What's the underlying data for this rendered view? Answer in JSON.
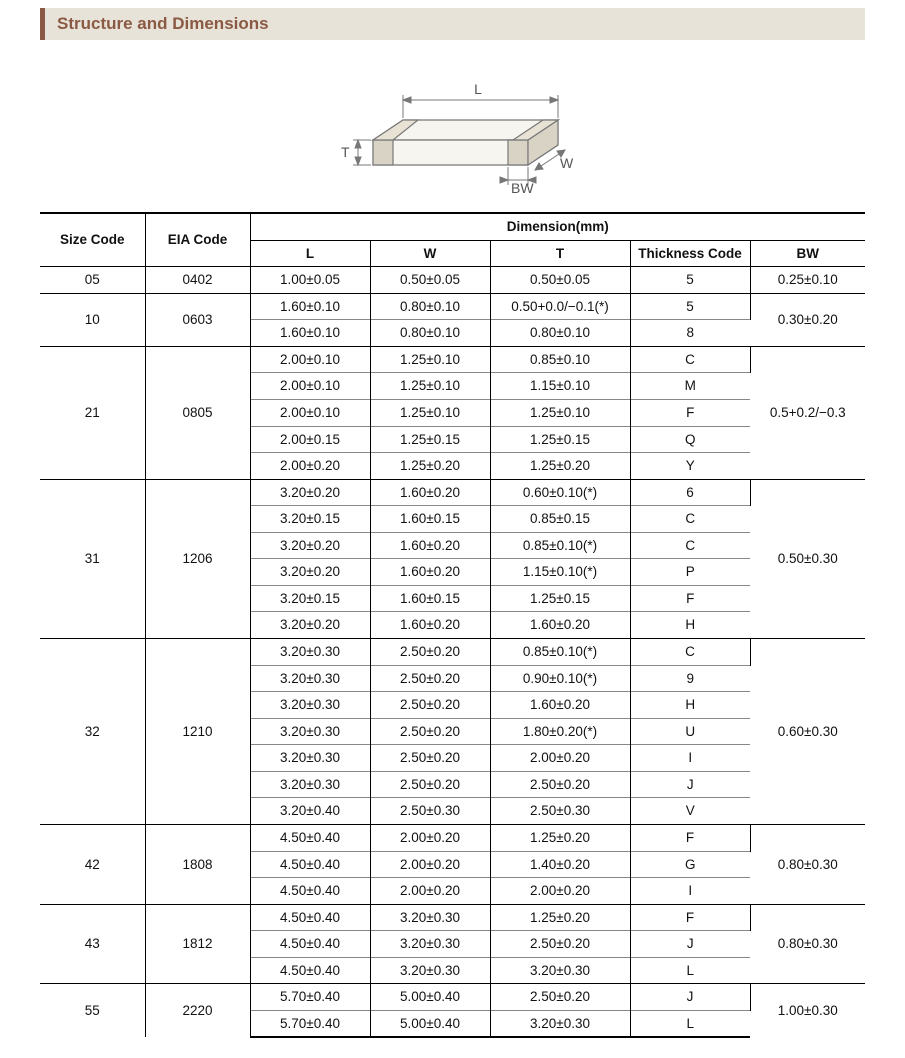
{
  "title": "Structure and Dimensions",
  "diagram": {
    "labels": {
      "L": "L",
      "W": "W",
      "T": "T",
      "BW": "BW"
    },
    "stroke": "#777777",
    "fill": "#f7f5f0",
    "text_color": "#555555",
    "fontsize": 14
  },
  "table": {
    "header_top": {
      "size": "Size Code",
      "eia": "EIA Code",
      "dim": "Dimension(mm)"
    },
    "header_sub": [
      "L",
      "W",
      "T",
      "Thickness  Code",
      "BW"
    ],
    "groups": [
      {
        "size": "05",
        "eia": "0402",
        "bw": "0.25±0.10",
        "rows": [
          {
            "L": "1.00±0.05",
            "W": "0.50±0.05",
            "T": "0.50±0.05",
            "tc": "5"
          }
        ]
      },
      {
        "size": "10",
        "eia": "0603",
        "bw": "0.30±0.20",
        "rows": [
          {
            "L": "1.60±0.10",
            "W": "0.80±0.10",
            "T": "0.50+0.0/−0.1(*)",
            "tc": "5"
          },
          {
            "L": "1.60±0.10",
            "W": "0.80±0.10",
            "T": "0.80±0.10",
            "tc": "8"
          }
        ]
      },
      {
        "size": "21",
        "eia": "0805",
        "bw": "0.5+0.2/−0.3",
        "rows": [
          {
            "L": "2.00±0.10",
            "W": "1.25±0.10",
            "T": "0.85±0.10",
            "tc": "C"
          },
          {
            "L": "2.00±0.10",
            "W": "1.25±0.10",
            "T": "1.15±0.10",
            "tc": "M"
          },
          {
            "L": "2.00±0.10",
            "W": "1.25±0.10",
            "T": "1.25±0.10",
            "tc": "F"
          },
          {
            "L": "2.00±0.15",
            "W": "1.25±0.15",
            "T": "1.25±0.15",
            "tc": "Q"
          },
          {
            "L": "2.00±0.20",
            "W": "1.25±0.20",
            "T": "1.25±0.20",
            "tc": "Y"
          }
        ]
      },
      {
        "size": "31",
        "eia": "1206",
        "bw": "0.50±0.30",
        "rows": [
          {
            "L": "3.20±0.20",
            "W": "1.60±0.20",
            "T": "0.60±0.10(*)",
            "tc": "6"
          },
          {
            "L": "3.20±0.15",
            "W": "1.60±0.15",
            "T": "0.85±0.15",
            "tc": "C"
          },
          {
            "L": "3.20±0.20",
            "W": "1.60±0.20",
            "T": "0.85±0.10(*)",
            "tc": "C"
          },
          {
            "L": "3.20±0.20",
            "W": "1.60±0.20",
            "T": "1.15±0.10(*)",
            "tc": "P"
          },
          {
            "L": "3.20±0.15",
            "W": "1.60±0.15",
            "T": "1.25±0.15",
            "tc": "F"
          },
          {
            "L": "3.20±0.20",
            "W": "1.60±0.20",
            "T": "1.60±0.20",
            "tc": "H"
          }
        ]
      },
      {
        "size": "32",
        "eia": "1210",
        "bw": "0.60±0.30",
        "rows": [
          {
            "L": "3.20±0.30",
            "W": "2.50±0.20",
            "T": "0.85±0.10(*)",
            "tc": "C"
          },
          {
            "L": "3.20±0.30",
            "W": "2.50±0.20",
            "T": "0.90±0.10(*)",
            "tc": "9"
          },
          {
            "L": "3.20±0.30",
            "W": "2.50±0.20",
            "T": "1.60±0.20",
            "tc": "H"
          },
          {
            "L": "3.20±0.30",
            "W": "2.50±0.20",
            "T": "1.80±0.20(*)",
            "tc": "U"
          },
          {
            "L": "3.20±0.30",
            "W": "2.50±0.20",
            "T": "2.00±0.20",
            "tc": "I"
          },
          {
            "L": "3.20±0.30",
            "W": "2.50±0.20",
            "T": "2.50±0.20",
            "tc": "J"
          },
          {
            "L": "3.20±0.40",
            "W": "2.50±0.30",
            "T": "2.50±0.30",
            "tc": "V"
          }
        ]
      },
      {
        "size": "42",
        "eia": "1808",
        "bw": "0.80±0.30",
        "rows": [
          {
            "L": "4.50±0.40",
            "W": "2.00±0.20",
            "T": "1.25±0.20",
            "tc": "F"
          },
          {
            "L": "4.50±0.40",
            "W": "2.00±0.20",
            "T": "1.40±0.20",
            "tc": "G"
          },
          {
            "L": "4.50±0.40",
            "W": "2.00±0.20",
            "T": "2.00±0.20",
            "tc": "I"
          }
        ]
      },
      {
        "size": "43",
        "eia": "1812",
        "bw": "0.80±0.30",
        "rows": [
          {
            "L": "4.50±0.40",
            "W": "3.20±0.30",
            "T": "1.25±0.20",
            "tc": "F"
          },
          {
            "L": "4.50±0.40",
            "W": "3.20±0.30",
            "T": "2.50±0.20",
            "tc": "J"
          },
          {
            "L": "4.50±0.40",
            "W": "3.20±0.30",
            "T": "3.20±0.30",
            "tc": "L"
          }
        ]
      },
      {
        "size": "55",
        "eia": "2220",
        "bw": "1.00±0.30",
        "rows": [
          {
            "L": "5.70±0.40",
            "W": "5.00±0.40",
            "T": "2.50±0.20",
            "tc": "J"
          },
          {
            "L": "5.70±0.40",
            "W": "5.00±0.40",
            "T": "3.20±0.30",
            "tc": "L"
          }
        ]
      }
    ]
  }
}
